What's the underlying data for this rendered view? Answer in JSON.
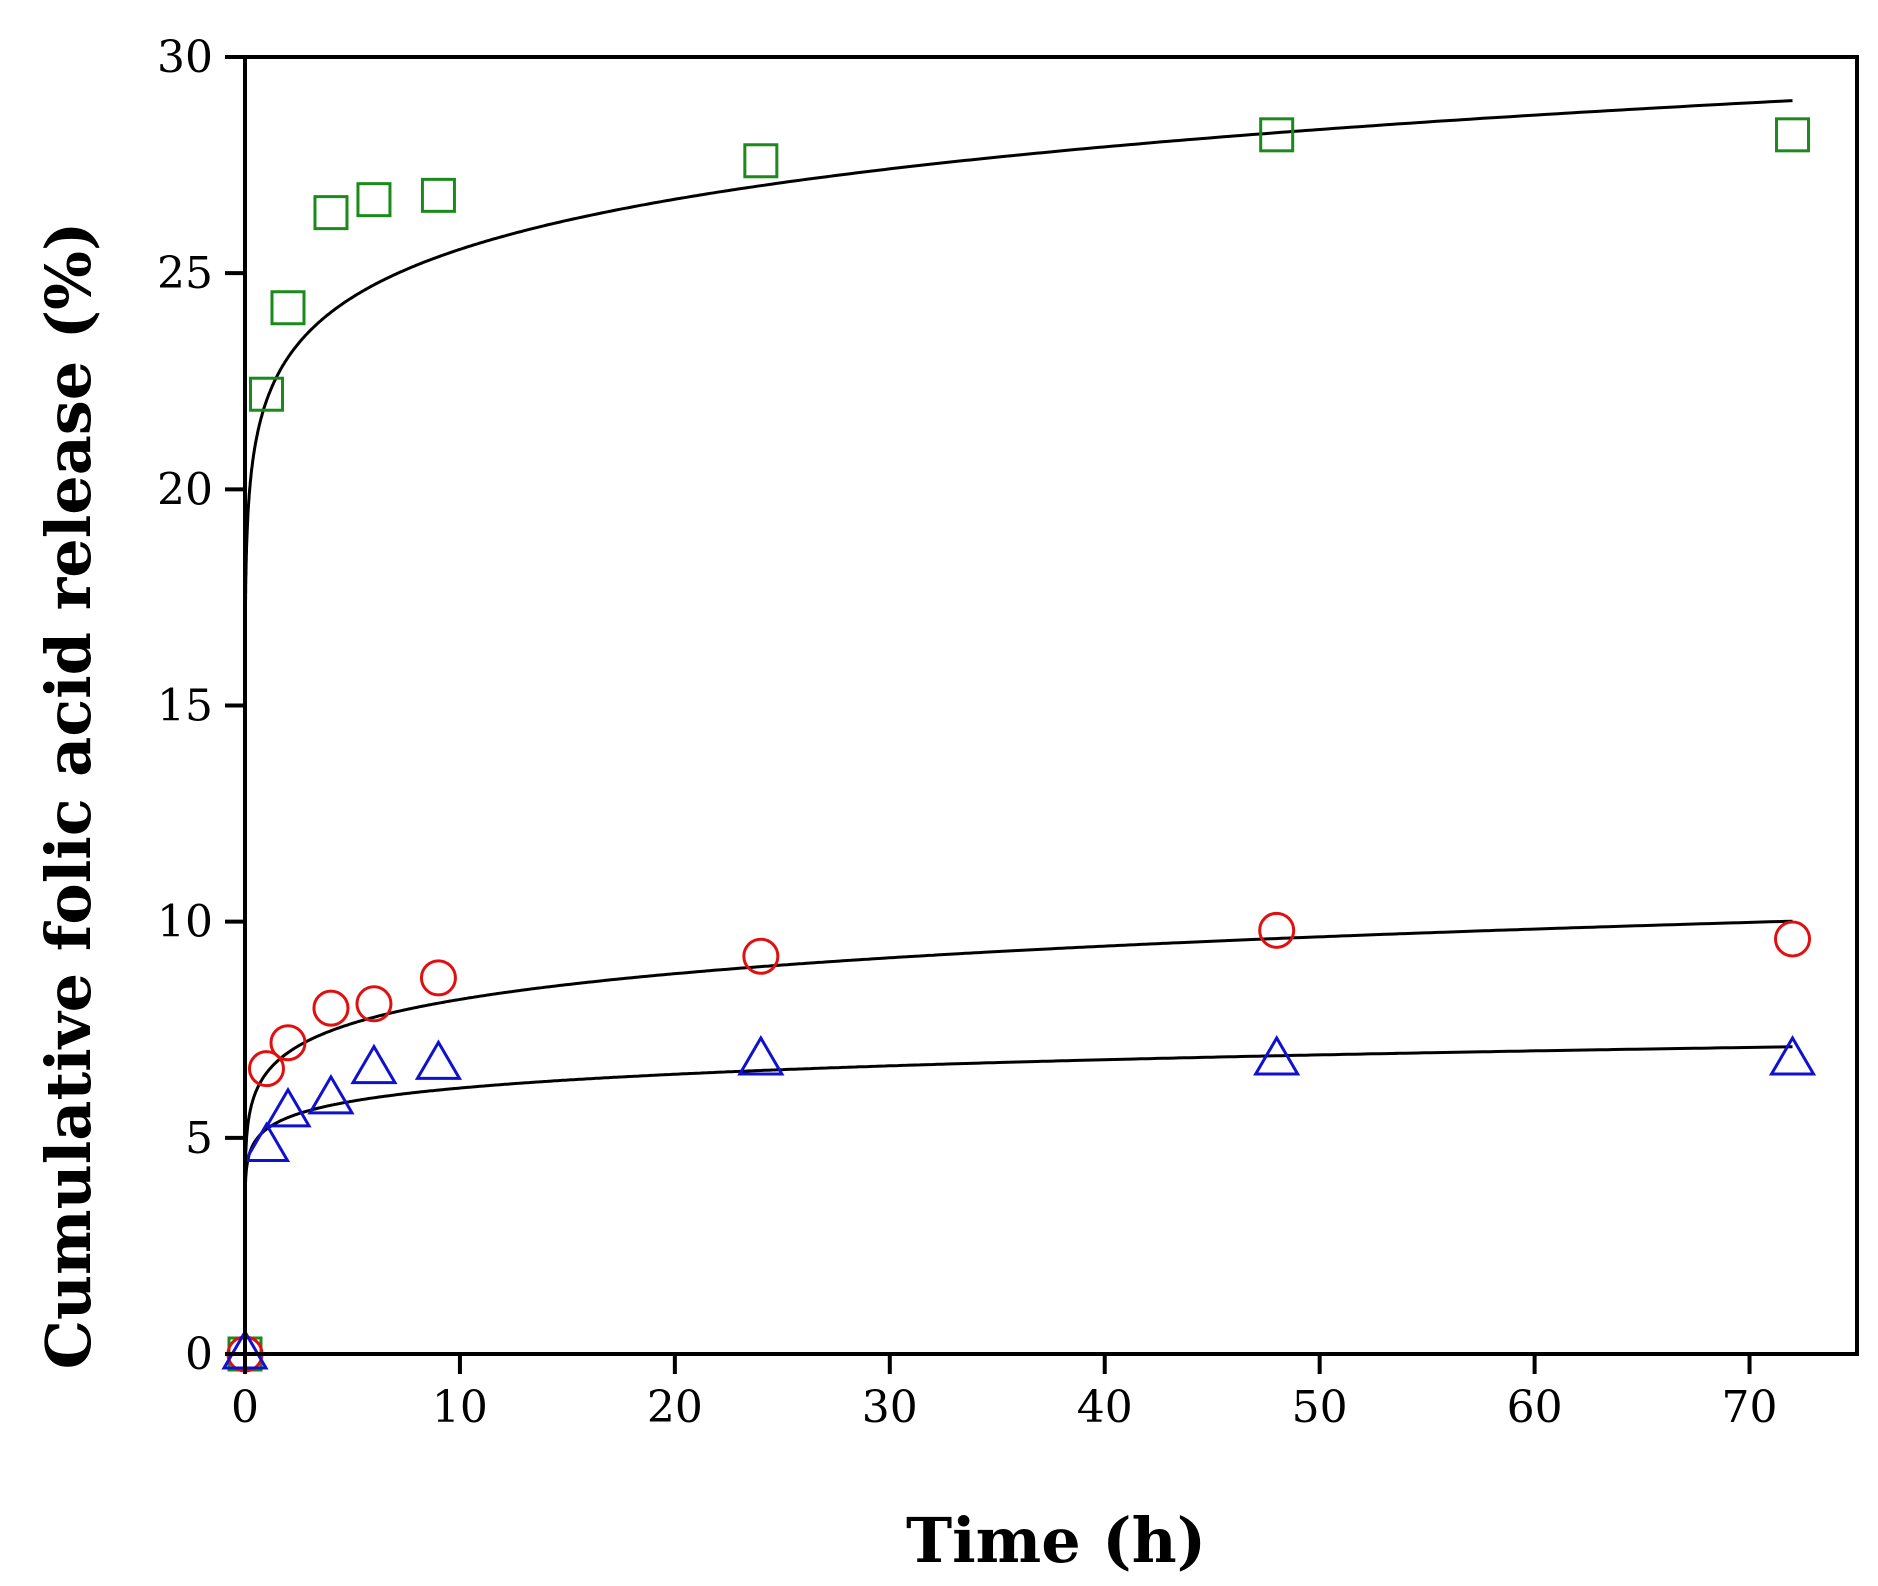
{
  "chart_data": {
    "type": "scatter",
    "title": "",
    "xlabel": "Time (h)",
    "ylabel": "Cumulative folic acid release (%)",
    "xlim": [
      0,
      75
    ],
    "ylim": [
      0,
      30
    ],
    "xticks": [
      0,
      10,
      20,
      30,
      40,
      50,
      60,
      70
    ],
    "yticks": [
      0,
      5,
      10,
      15,
      20,
      25,
      30
    ],
    "grid": false,
    "legend": "none",
    "series": [
      {
        "name": "squares",
        "marker": "square",
        "color": "#1a8a1a",
        "x": [
          0,
          1,
          2,
          4,
          6,
          9,
          24,
          48,
          72
        ],
        "y": [
          0,
          22.2,
          24.2,
          26.4,
          26.7,
          26.8,
          27.6,
          28.2,
          28.2
        ],
        "fit": {
          "k": 22.05,
          "n": 0.064
        }
      },
      {
        "name": "circles",
        "marker": "circle",
        "color": "#e01010",
        "x": [
          0,
          1,
          2,
          4,
          6,
          9,
          24,
          48,
          72
        ],
        "y": [
          0,
          6.6,
          7.2,
          8.0,
          8.1,
          8.7,
          9.2,
          9.8,
          9.6
        ],
        "fit": {
          "k": 6.5,
          "n": 0.101
        }
      },
      {
        "name": "triangles",
        "marker": "triangle",
        "color": "#1010d0",
        "x": [
          0,
          1,
          2,
          4,
          6,
          9,
          24,
          48,
          72
        ],
        "y": [
          0,
          4.8,
          5.6,
          5.9,
          6.6,
          6.7,
          6.8,
          6.8,
          6.8
        ],
        "fit": {
          "k": 5.2,
          "n": 0.073
        }
      }
    ]
  }
}
